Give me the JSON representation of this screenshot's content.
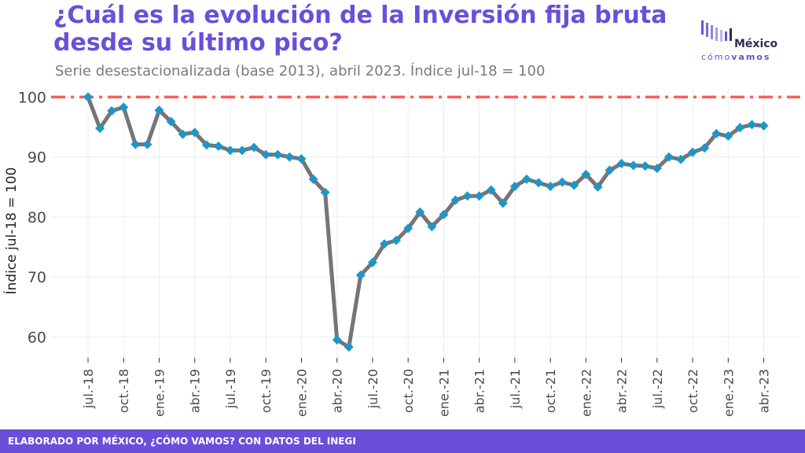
{
  "header": {
    "title": "¿Cuál es la evolución de la Inversión fija bruta desde su último pico?",
    "subtitle": "Serie desestacionalizada (base 2013), abril 2023. Índice jul-18 = 100"
  },
  "logo": {
    "top_text": "México",
    "bottom_light": "cómo",
    "bottom_bold": "vamos"
  },
  "footer": {
    "text": "ELABORADO POR MÉXICO, ¿CÓMO VAMOS? CON DATOS DEL INEGI"
  },
  "colors": {
    "accent": "#6a4fd8",
    "line": "#757575",
    "marker": "#1f96c8",
    "reference": "#f8605a",
    "grid": "#ececec"
  },
  "chart_data": {
    "type": "line",
    "title": "¿Cuál es la evolución de la Inversión fija bruta desde su último pico?",
    "subtitle": "Serie desestacionalizada (base 2013), abril 2023. Índice jul-18 = 100",
    "xlabel": "",
    "ylabel": "Índice jul-18 = 100",
    "ylim": [
      56.5,
      101.5
    ],
    "yticks": [
      60,
      70,
      80,
      90,
      100
    ],
    "grid": true,
    "reference_line": {
      "y": 100,
      "style": "dash-dot"
    },
    "x": [
      "jul.-18",
      "ago.-18",
      "sep.-18",
      "oct.-18",
      "nov.-18",
      "dic.-18",
      "ene.-19",
      "feb.-19",
      "mar.-19",
      "abr.-19",
      "may.-19",
      "jun.-19",
      "jul.-19",
      "ago.-19",
      "sep.-19",
      "oct.-19",
      "nov.-19",
      "dic.-19",
      "ene.-20",
      "feb.-20",
      "mar.-20",
      "abr.-20",
      "may.-20",
      "jun.-20",
      "jul.-20",
      "ago.-20",
      "sep.-20",
      "oct.-20",
      "nov.-20",
      "dic.-20",
      "ene.-21",
      "feb.-21",
      "mar.-21",
      "abr.-21",
      "may.-21",
      "jun.-21",
      "jul.-21",
      "ago.-21",
      "sep.-21",
      "oct.-21",
      "nov.-21",
      "dic.-21",
      "ene.-22",
      "feb.-22",
      "mar.-22",
      "abr.-22",
      "may.-22",
      "jun.-22",
      "jul.-22",
      "ago.-22",
      "sep.-22",
      "oct.-22",
      "nov.-22",
      "dic.-22",
      "ene.-23",
      "feb.-23",
      "mar.-23",
      "abr.-23"
    ],
    "xtick_labels": [
      "jul.-18",
      "oct.-18",
      "ene.-19",
      "abr.-19",
      "jul.-19",
      "oct.-19",
      "ene.-20",
      "abr.-20",
      "jul.-20",
      "oct.-20",
      "ene.-21",
      "abr.-21",
      "jul.-21",
      "oct.-21",
      "ene.-22",
      "abr.-22",
      "jul.-22",
      "oct.-22",
      "ene.-23",
      "abr.-23"
    ],
    "values": [
      100,
      94.8,
      97.7,
      98.3,
      92.1,
      92.1,
      97.8,
      95.9,
      93.8,
      94.1,
      92.0,
      91.8,
      91.1,
      91.1,
      91.6,
      90.4,
      90.4,
      90.0,
      89.7,
      86.3,
      84.1,
      59.5,
      58.3,
      70.3,
      72.4,
      75.5,
      76.1,
      78.1,
      80.8,
      78.4,
      80.4,
      82.8,
      83.5,
      83.5,
      84.5,
      82.3,
      85.1,
      86.3,
      85.7,
      85.1,
      85.8,
      85.3,
      87.1,
      85.0,
      87.8,
      88.9,
      88.6,
      88.5,
      88.1,
      90.0,
      89.6,
      90.8,
      91.5,
      93.9,
      93.5,
      94.9,
      95.4,
      95.2
    ]
  }
}
